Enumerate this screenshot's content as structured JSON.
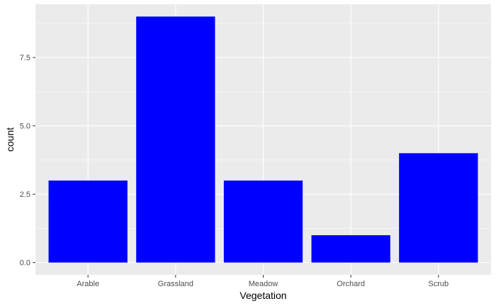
{
  "chart_data": {
    "type": "bar",
    "categories": [
      "Arable",
      "Grassland",
      "Meadow",
      "Orchard",
      "Scrub"
    ],
    "values": [
      3,
      9,
      3,
      1,
      4
    ],
    "title": "",
    "xlabel": "Vegetation",
    "ylabel": "count",
    "ylim": [
      -0.45,
      9.45
    ],
    "yticks": [
      0.0,
      2.5,
      5.0,
      7.5
    ],
    "ytick_labels": [
      "0.0",
      "2.5",
      "5.0",
      "7.5"
    ],
    "grid": true,
    "legend": "none",
    "colors": {
      "bar": "#0000FF",
      "panel_background": "#EBEBEB",
      "grid_major": "#FFFFFF",
      "tick_text": "#4D4D4D",
      "tick_mark": "#333333"
    }
  }
}
